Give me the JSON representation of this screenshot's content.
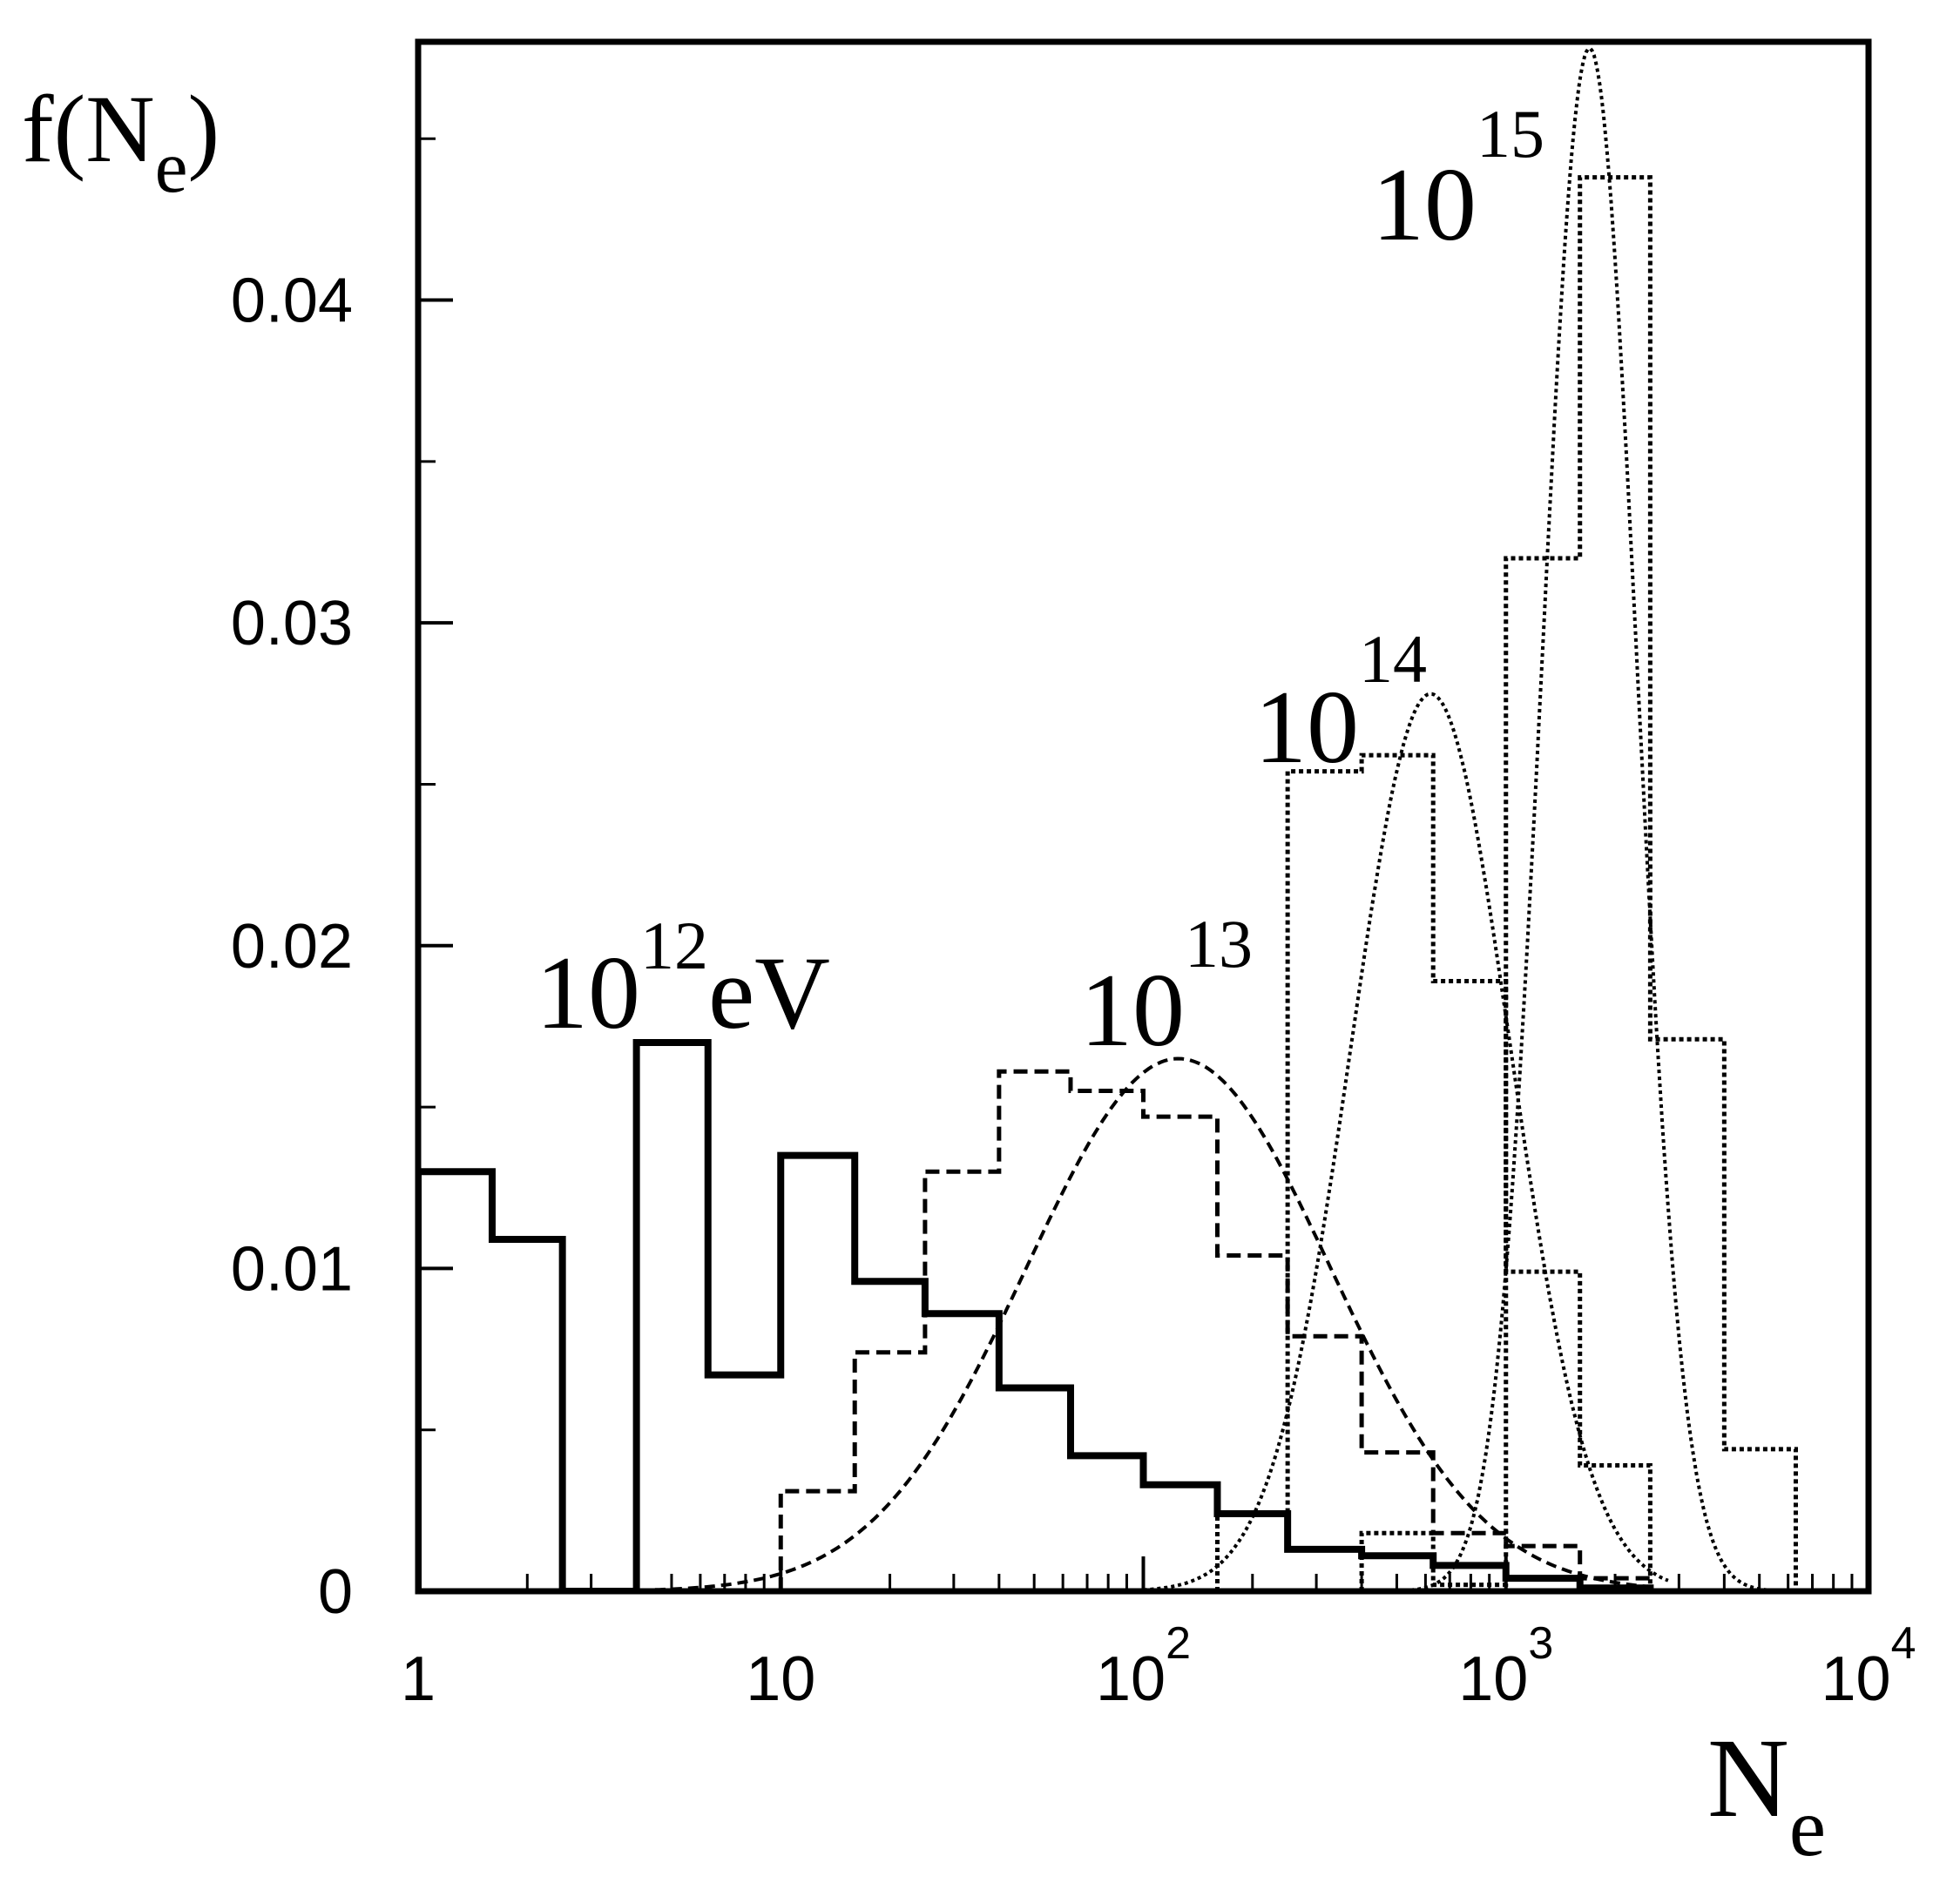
{
  "chart_data": {
    "type": "histogram",
    "x_scale": "log",
    "xlim": [
      1,
      10000
    ],
    "ylim": [
      0,
      0.048
    ],
    "grid": false,
    "legend": "none",
    "ylabel": {
      "base": "f(N",
      "sub": "e",
      "close": ")"
    },
    "xlabel": {
      "base": "N",
      "sub": "e"
    },
    "y_ticks": [
      {
        "value": 0,
        "label": "0"
      },
      {
        "value": 0.01,
        "label": "0.01"
      },
      {
        "value": 0.02,
        "label": "0.02"
      },
      {
        "value": 0.03,
        "label": "0.03"
      },
      {
        "value": 0.04,
        "label": "0.04"
      }
    ],
    "y_minor_ticks": [
      0.005,
      0.015,
      0.025,
      0.035,
      0.045
    ],
    "x_ticks": [
      {
        "value": 1,
        "base": "1",
        "exp": ""
      },
      {
        "value": 10,
        "base": "10",
        "exp": ""
      },
      {
        "value": 100,
        "base": "10",
        "exp": "2"
      },
      {
        "value": 1000,
        "base": "10",
        "exp": "3"
      },
      {
        "value": 10000,
        "base": "10",
        "exp": "4"
      }
    ],
    "series": [
      {
        "name": "10^12 eV",
        "style": "solid",
        "edges": [
          1,
          1.6,
          2.5,
          4,
          6.3,
          10,
          16,
          25,
          40,
          63,
          100,
          160,
          250,
          400,
          630,
          1000,
          1600,
          2500
        ],
        "values": [
          0.013,
          0.0109,
          0,
          0.017,
          0.0067,
          0.0135,
          0.0096,
          0.0086,
          0.0063,
          0.0042,
          0.0033,
          0.0024,
          0.0013,
          0.0011,
          0.0008,
          0.0004,
          0.0001
        ],
        "fit": null
      },
      {
        "name": "10^13",
        "style": "dashed",
        "edges": [
          10,
          16,
          25,
          40,
          63,
          100,
          160,
          250,
          400,
          630,
          1000,
          1600,
          2500
        ],
        "values": [
          0.0031,
          0.0074,
          0.013,
          0.0161,
          0.0155,
          0.0147,
          0.0104,
          0.0079,
          0.0043,
          0.0018,
          0.0014,
          0.0004
        ],
        "fit": {
          "peak": 0.0165,
          "x_peak": 125,
          "sigma_log10": 0.42,
          "x_min": 4.5,
          "x_max": 2500
        }
      },
      {
        "name": "10^14",
        "style": "dotted",
        "edges": [
          160,
          250,
          400,
          630,
          1000,
          1600,
          2500
        ],
        "values": [
          0.0024,
          0.0254,
          0.0259,
          0.0189,
          0.0099,
          0.0039
        ],
        "fit": {
          "peak": 0.0278,
          "x_peak": 620,
          "sigma_log10": 0.22,
          "x_min": 100,
          "x_max": 2800
        }
      },
      {
        "name": "10^15",
        "style": "dotted",
        "edges": [
          400,
          630,
          1000,
          1600,
          2500,
          4000,
          6300
        ],
        "values": [
          0.0018,
          0.0002,
          0.032,
          0.0438,
          0.0171,
          0.0044
        ],
        "fit": {
          "peak": 0.0478,
          "x_peak": 1700,
          "sigma_log10": 0.13,
          "x_min": 500,
          "x_max": 9000
        }
      }
    ],
    "annotations": [
      {
        "base": "10",
        "exp": "12",
        "suffix": "eV",
        "series": "10^12 eV"
      },
      {
        "base": "10",
        "exp": "13",
        "suffix": "",
        "series": "10^13"
      },
      {
        "base": "10",
        "exp": "14",
        "suffix": "",
        "series": "10^14"
      },
      {
        "base": "10",
        "exp": "15",
        "suffix": "",
        "series": "10^15"
      }
    ]
  }
}
